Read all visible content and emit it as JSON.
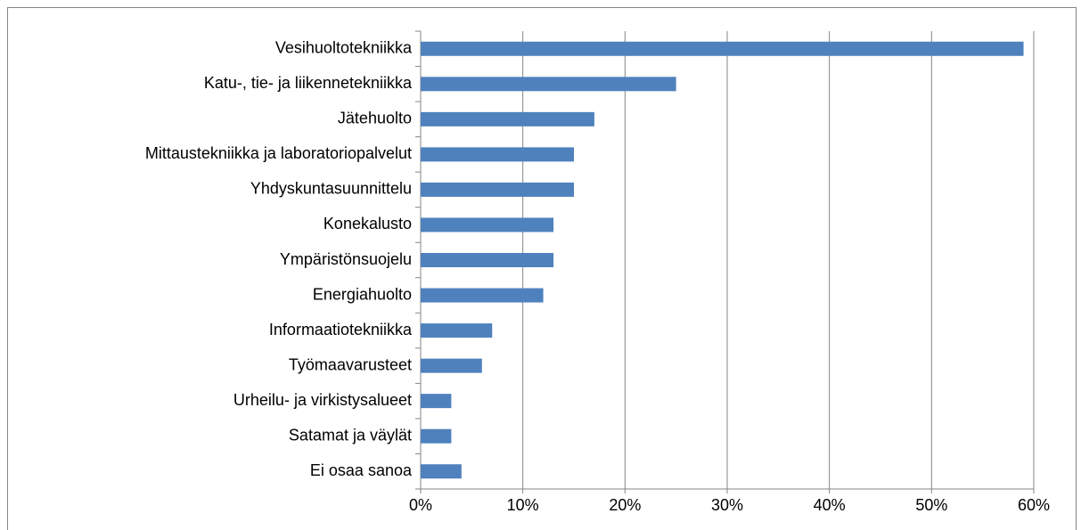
{
  "chart_data": {
    "type": "bar",
    "orientation": "horizontal",
    "categories": [
      "Vesihuoltotekniikka",
      "Katu-, tie- ja liikennetekniikka",
      "Jätehuolto",
      "Mittaustekniikka ja laboratoriopalvelut",
      "Yhdyskuntasuunnittelu",
      "Konekalusto",
      "Ympäristönsuojelu",
      "Energiahuolto",
      "Informaatiotekniikka",
      "Työmaavarusteet",
      "Urheilu- ja virkistysalueet",
      "Satamat ja väylät",
      "Ei osaa sanoa"
    ],
    "values": [
      59,
      25,
      17,
      15,
      15,
      13,
      13,
      12,
      7,
      6,
      3,
      3,
      4
    ],
    "color": "#4f81bd",
    "xlim": [
      0,
      60
    ],
    "xticks": [
      {
        "value": 0,
        "label": "0%"
      },
      {
        "value": 10,
        "label": "10%"
      },
      {
        "value": 20,
        "label": "20%"
      },
      {
        "value": 30,
        "label": "30%"
      },
      {
        "value": 40,
        "label": "40%"
      },
      {
        "value": 50,
        "label": "50%"
      },
      {
        "value": 60,
        "label": "60%"
      }
    ],
    "grid": true
  }
}
